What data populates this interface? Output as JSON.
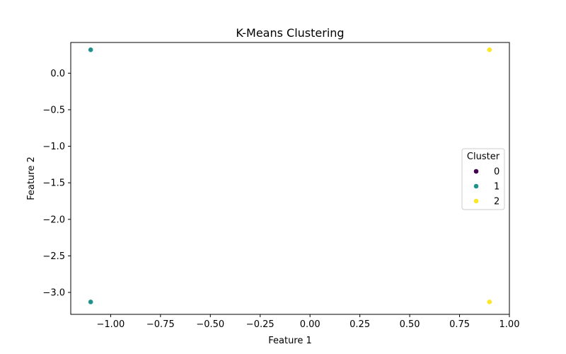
{
  "chart_data": {
    "type": "scatter",
    "title": "K-Means Clustering",
    "xlabel": "Feature 1",
    "ylabel": "Feature 2",
    "xlim": [
      -1.2,
      1.0
    ],
    "ylim": [
      -3.3,
      0.42
    ],
    "xticks": [
      -1.0,
      -0.75,
      -0.5,
      -0.25,
      0.0,
      0.25,
      0.5,
      0.75,
      1.0
    ],
    "xtick_labels": [
      "−1.00",
      "−0.75",
      "−0.50",
      "−0.25",
      "0.00",
      "0.25",
      "0.50",
      "0.75",
      "1.00"
    ],
    "yticks": [
      0.0,
      -0.5,
      -1.0,
      -1.5,
      -2.0,
      -2.5,
      -3.0
    ],
    "ytick_labels": [
      "0.0",
      "−0.5",
      "−1.0",
      "−1.5",
      "−2.0",
      "−2.5",
      "−3.0"
    ],
    "grid": false,
    "legend": {
      "title": "Cluster",
      "placement": "center-right",
      "entries": [
        {
          "label": "0",
          "color": "#440154"
        },
        {
          "label": "1",
          "color": "#21918c"
        },
        {
          "label": "2",
          "color": "#fde725"
        }
      ]
    },
    "series": [
      {
        "name": "0",
        "color": "#440154",
        "x": [],
        "y": []
      },
      {
        "name": "1",
        "color": "#21918c",
        "x": [
          -1.1,
          -1.1
        ],
        "y": [
          0.32,
          -3.13
        ]
      },
      {
        "name": "2",
        "color": "#fde725",
        "x": [
          0.9,
          0.9
        ],
        "y": [
          0.32,
          -3.13
        ]
      }
    ]
  }
}
